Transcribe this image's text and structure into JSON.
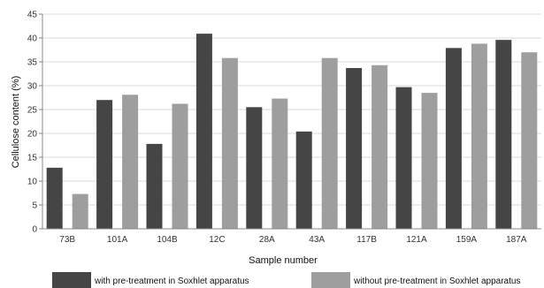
{
  "chart_data": {
    "type": "bar",
    "xlabel": "Sample number",
    "ylabel": "Cellulose content (%)",
    "ylim": [
      0,
      45
    ],
    "yticks": [
      0,
      5,
      10,
      15,
      20,
      25,
      30,
      35,
      40,
      45
    ],
    "grid": true,
    "legend_position": "bottom",
    "categories": [
      "73B",
      "101A",
      "104B",
      "12C",
      "28A",
      "43A",
      "117B",
      "121A",
      "159A",
      "187A"
    ],
    "series": [
      {
        "name": "with pre-treatment in Soxhlet apparatus",
        "color": "#454545",
        "values": [
          12.8,
          27.0,
          17.8,
          40.9,
          25.5,
          20.4,
          33.7,
          29.7,
          37.9,
          39.6
        ]
      },
      {
        "name": "without pre-treatment in Soxhlet apparatus",
        "color": "#9e9e9e",
        "values": [
          7.3,
          28.1,
          26.2,
          35.8,
          27.3,
          35.8,
          34.3,
          28.5,
          38.8,
          37.0
        ]
      }
    ]
  }
}
